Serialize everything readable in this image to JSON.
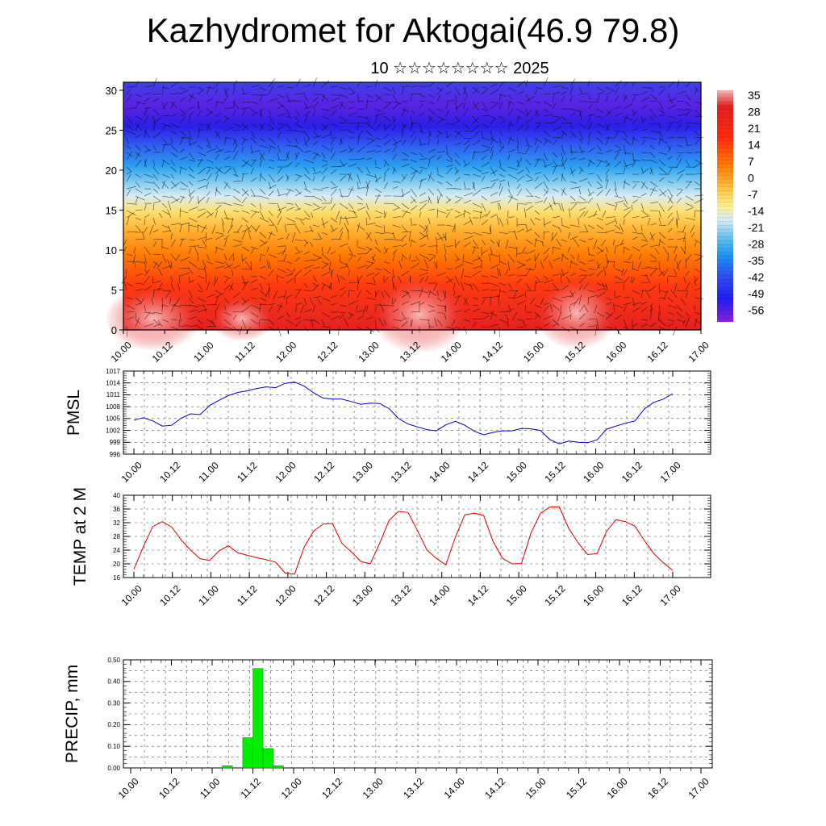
{
  "title": "Kazhydromet for Aktogai(46.9 79.8)",
  "subtitle": "10 ☆☆☆☆☆☆☆☆ 2025",
  "time_ticks": [
    "10.00",
    "10.12",
    "11.00",
    "11.12",
    "12.00",
    "12.12",
    "13.00",
    "13.12",
    "14.00",
    "14.12",
    "15.00",
    "15.12",
    "16.00",
    "16.12",
    "17.00"
  ],
  "chart_data": [
    {
      "type": "heatmap",
      "name_ref": "cross-section",
      "xlabel": "",
      "ylabel": "",
      "y_ticks": [
        "0",
        "5",
        "10",
        "15",
        "20",
        "25",
        "30"
      ],
      "ylim": [
        0,
        31
      ],
      "colorbar_labels": [
        "35",
        "28",
        "21",
        "14",
        "7",
        "0",
        "-7",
        "-14",
        "-21",
        "-28",
        "-35",
        "-42",
        "-49",
        "-56"
      ],
      "colorbar_range": [
        -60,
        38
      ],
      "description_of_field": "temperature decreasing with height; warm near surface, coldest near 25-28",
      "colors": {
        "warmest": "#f3a0a0",
        "red": "#e01818",
        "orange": "#ff8a00",
        "yellow": "#ffe060",
        "lightblue": "#a8d8f0",
        "cyan": "#1ab0f0",
        "blue": "#2020f0",
        "violet": "#8a20e0"
      }
    },
    {
      "type": "line",
      "ylabel": "PMSL",
      "ylim": [
        996,
        1017
      ],
      "y_ticks": [
        "996",
        "999",
        "1002",
        "1005",
        "1008",
        "1011",
        "1014",
        "1017"
      ],
      "series": [
        {
          "color": "#0000cc",
          "values": [
            1004.6,
            1005.2,
            1004.4,
            1003.1,
            1003.3,
            1005.1,
            1006.2,
            1006.0,
            1008.3,
            1009.6,
            1010.8,
            1011.6,
            1012.0,
            1012.6,
            1013.0,
            1012.8,
            1013.9,
            1014.2,
            1013.2,
            1011.5,
            1010.2,
            1009.9,
            1009.9,
            1009.3,
            1008.6,
            1008.9,
            1008.8,
            1007.5,
            1005.0,
            1003.6,
            1002.9,
            1002.2,
            1001.9,
            1003.4,
            1004.3,
            1003.3,
            1001.8,
            1000.9,
            1001.5,
            1001.9,
            1001.9,
            1002.5,
            1002.4,
            1002.0,
            999.7,
            998.6,
            999.3,
            999.0,
            998.9,
            999.6,
            1002.3,
            1003.1,
            1003.8,
            1004.4,
            1007.4,
            1009.1,
            1009.9,
            1011.3
          ]
        }
      ]
    },
    {
      "type": "line",
      "ylabel": "TEMP at 2 M",
      "ylim": [
        16,
        40
      ],
      "y_ticks": [
        "16",
        "20",
        "24",
        "28",
        "32",
        "36",
        "40"
      ],
      "series": [
        {
          "color": "#e00000",
          "values": [
            18.5,
            25.0,
            30.9,
            32.3,
            30.7,
            27.0,
            24.0,
            21.5,
            21.0,
            23.8,
            25.3,
            23.2,
            22.5,
            21.8,
            21.2,
            20.5,
            17.3,
            17.0,
            24.8,
            29.5,
            31.6,
            31.8,
            26.0,
            23.5,
            20.7,
            20.0,
            26.0,
            32.7,
            35.3,
            35.0,
            29.7,
            24.0,
            21.6,
            19.7,
            27.8,
            34.3,
            34.8,
            34.1,
            26.5,
            21.6,
            20.0,
            20.1,
            29.0,
            34.7,
            36.6,
            36.6,
            30.3,
            26.1,
            22.7,
            23.0,
            29.5,
            32.9,
            32.3,
            31.0,
            26.8,
            23.0,
            20.3,
            18.1
          ]
        }
      ]
    },
    {
      "type": "bar",
      "ylabel": "PRECIP, mm",
      "ylim": [
        0,
        0.5
      ],
      "y_ticks": [
        "0.00",
        "0.10",
        "0.20",
        "0.30",
        "0.40",
        "0.50"
      ],
      "color": "#00ee00",
      "values": [
        0,
        0,
        0,
        0,
        0,
        0,
        0,
        0,
        0,
        0.01,
        0,
        0.14,
        0.46,
        0.09,
        0.01,
        0,
        0,
        0,
        0,
        0,
        0,
        0,
        0,
        0,
        0,
        0,
        0,
        0,
        0,
        0,
        0,
        0,
        0,
        0,
        0,
        0,
        0,
        0,
        0,
        0,
        0,
        0,
        0,
        0,
        0,
        0,
        0,
        0,
        0,
        0,
        0,
        0,
        0,
        0,
        0,
        0
      ]
    }
  ]
}
